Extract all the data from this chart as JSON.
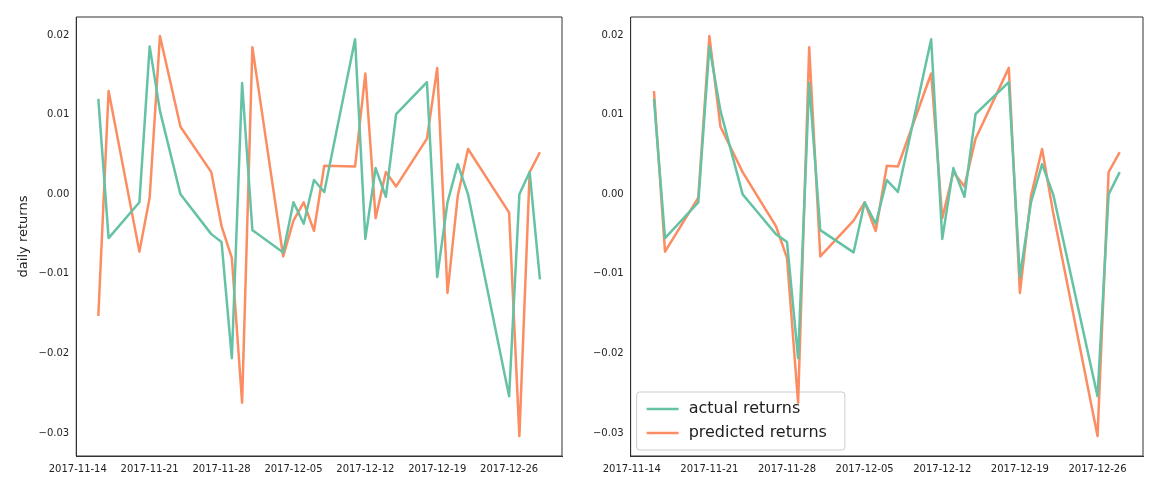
{
  "chart_data": [
    {
      "type": "line",
      "ylabel": "daily returns",
      "xlim": [
        "2017-11-13T20:24",
        "2017-12-31T03:36"
      ],
      "ylim": [
        -0.0329,
        0.0223
      ],
      "xticks": [
        "2017-11-14",
        "2017-11-21",
        "2017-11-28",
        "2017-12-05",
        "2017-12-12",
        "2017-12-19",
        "2017-12-26"
      ],
      "yticks": [
        {
          "value": -0.03,
          "label": "−0.03"
        },
        {
          "value": -0.02,
          "label": "−0.02"
        },
        {
          "value": -0.01,
          "label": "−0.01"
        },
        {
          "value": 0,
          "label": "0.00"
        },
        {
          "value": 0.01,
          "label": "0.01"
        },
        {
          "value": 0.02,
          "label": "0.02"
        }
      ],
      "grid": false,
      "legend": false,
      "series": [
        {
          "color": "#66c2a5",
          "x": [
            "2017-11-16",
            "2017-11-17",
            "2017-11-20",
            "2017-11-21",
            "2017-11-22",
            "2017-11-24",
            "2017-11-27",
            "2017-11-28",
            "2017-11-29",
            "2017-11-30",
            "2017-12-01",
            "2017-12-04",
            "2017-12-05",
            "2017-12-06",
            "2017-12-07",
            "2017-12-08",
            "2017-12-11",
            "2017-12-12",
            "2017-12-13",
            "2017-12-14",
            "2017-12-15",
            "2017-12-18",
            "2017-12-19",
            "2017-12-20",
            "2017-12-21",
            "2017-12-22",
            "2017-12-26",
            "2017-12-27",
            "2017-12-28",
            "2017-12-29"
          ],
          "values": [
            0.012,
            -0.0055,
            -0.001,
            0.0186,
            0.0105,
            0.0,
            -0.005,
            -0.006,
            -0.0206,
            0.014,
            -0.0045,
            -0.0073,
            -0.001,
            -0.0037,
            0.0018,
            0.0003,
            0.0195,
            -0.0056,
            0.0033,
            -0.0003,
            0.0101,
            0.0141,
            -0.0104,
            -0.001,
            0.0038,
            0.0,
            -0.0254,
            0.0,
            0.0028,
            -0.0107
          ]
        },
        {
          "color": "#fc8d62",
          "x": [
            "2017-11-16",
            "2017-11-17",
            "2017-11-20",
            "2017-11-21",
            "2017-11-22",
            "2017-11-24",
            "2017-11-27",
            "2017-11-28",
            "2017-11-29",
            "2017-11-30",
            "2017-12-01",
            "2017-12-04",
            "2017-12-05",
            "2017-12-06",
            "2017-12-07",
            "2017-12-08",
            "2017-12-11",
            "2017-12-12",
            "2017-12-13",
            "2017-12-14",
            "2017-12-15",
            "2017-12-18",
            "2017-12-19",
            "2017-12-20",
            "2017-12-21",
            "2017-12-22",
            "2017-12-26",
            "2017-12-27",
            "2017-12-28",
            "2017-12-29"
          ],
          "values": [
            -0.0153,
            0.013,
            -0.0072,
            -0.0004,
            0.0199,
            0.0085,
            0.0028,
            -0.004,
            -0.008,
            -0.0262,
            0.0185,
            -0.0078,
            -0.0033,
            -0.001,
            -0.0046,
            0.0036,
            0.0035,
            0.0152,
            -0.003,
            0.0028,
            0.001,
            0.007,
            0.0159,
            -0.0124,
            -0.0002,
            0.0057,
            -0.0023,
            -0.0304,
            0.0028,
            0.0053
          ]
        }
      ]
    },
    {
      "type": "line",
      "xlim": [
        "2017-11-13T21:36",
        "2017-12-30T02:24"
      ],
      "ylim": [
        -0.0329,
        0.0223
      ],
      "xticks": [
        "2017-11-14",
        "2017-11-21",
        "2017-11-28",
        "2017-12-05",
        "2017-12-12",
        "2017-12-19",
        "2017-12-26"
      ],
      "yticks": [
        {
          "value": -0.03,
          "label": "−0.03"
        },
        {
          "value": -0.02,
          "label": "−0.02"
        },
        {
          "value": -0.01,
          "label": "−0.01"
        },
        {
          "value": 0,
          "label": "0.00"
        },
        {
          "value": 0.01,
          "label": "0.01"
        },
        {
          "value": 0.02,
          "label": "0.02"
        }
      ],
      "grid": false,
      "legend": "bottom left",
      "series": [
        {
          "name": "actual returns",
          "color": "#66c2a5",
          "x": [
            "2017-11-16",
            "2017-11-17",
            "2017-11-20",
            "2017-11-21",
            "2017-11-22",
            "2017-11-24",
            "2017-11-27",
            "2017-11-28",
            "2017-11-29",
            "2017-11-30",
            "2017-12-01",
            "2017-12-04",
            "2017-12-05",
            "2017-12-06",
            "2017-12-07",
            "2017-12-08",
            "2017-12-11",
            "2017-12-12",
            "2017-12-13",
            "2017-12-14",
            "2017-12-15",
            "2017-12-18",
            "2017-12-19",
            "2017-12-20",
            "2017-12-21",
            "2017-12-22",
            "2017-12-26",
            "2017-12-27",
            "2017-12-28"
          ],
          "values": [
            0.012,
            -0.0055,
            -0.001,
            0.0186,
            0.0105,
            0.0,
            -0.005,
            -0.006,
            -0.0206,
            0.014,
            -0.0045,
            -0.0073,
            -0.001,
            -0.0037,
            0.0018,
            0.0003,
            0.0195,
            -0.0056,
            0.0033,
            -0.0003,
            0.0101,
            0.0141,
            -0.0104,
            -0.001,
            0.0038,
            0.0,
            -0.0254,
            0.0,
            0.0028
          ]
        },
        {
          "name": "predicted returns",
          "color": "#fc8d62",
          "x": [
            "2017-11-16",
            "2017-11-17",
            "2017-11-20",
            "2017-11-21",
            "2017-11-22",
            "2017-11-24",
            "2017-11-27",
            "2017-11-28",
            "2017-11-29",
            "2017-11-30",
            "2017-12-01",
            "2017-12-04",
            "2017-12-05",
            "2017-12-06",
            "2017-12-07",
            "2017-12-08",
            "2017-12-11",
            "2017-12-12",
            "2017-12-13",
            "2017-12-14",
            "2017-12-15",
            "2017-12-18",
            "2017-12-19",
            "2017-12-20",
            "2017-12-21",
            "2017-12-22",
            "2017-12-26",
            "2017-12-27",
            "2017-12-28"
          ],
          "values": [
            0.013,
            -0.0072,
            -0.0004,
            0.0199,
            0.0085,
            0.0028,
            -0.004,
            -0.008,
            -0.0262,
            0.0185,
            -0.0078,
            -0.0033,
            -0.001,
            -0.0046,
            0.0036,
            0.0035,
            0.0152,
            -0.003,
            0.0028,
            0.001,
            0.007,
            0.0159,
            -0.0124,
            -0.0002,
            0.0057,
            -0.0023,
            -0.0304,
            0.0028,
            0.0053
          ]
        }
      ]
    }
  ]
}
